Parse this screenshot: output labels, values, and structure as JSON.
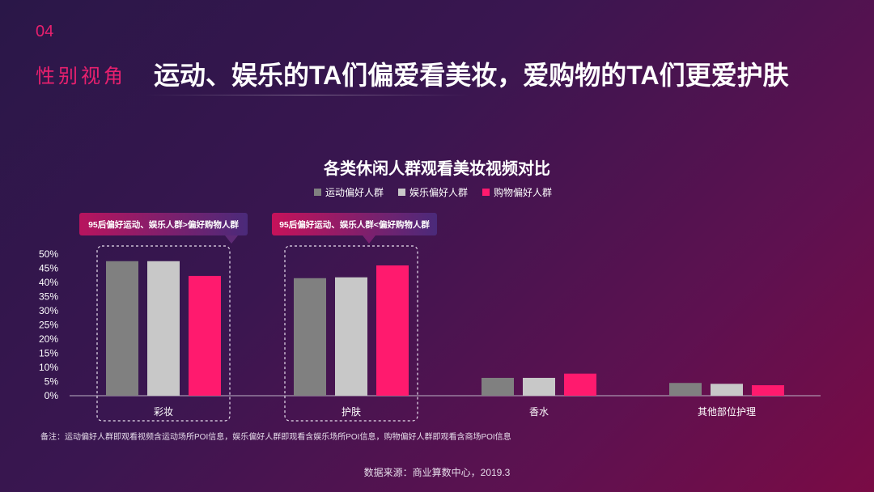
{
  "slide": {
    "number": "04",
    "section": "性别视角",
    "headline": "运动、娱乐的TA们偏爱看美妆，爱购物的TA们更爱护肤"
  },
  "callouts": [
    "95后偏好运动、娱乐人群>偏好购物人群",
    "95后偏好运动、娱乐人群<偏好购物人群"
  ],
  "note": "备注：运动偏好人群即观看视频含运动场所POI信息，娱乐偏好人群即观看含娱乐场所POI信息，购物偏好人群即观看含商场POI信息",
  "source": "数据来源：商业算数中心，2019.3",
  "chart_data": {
    "type": "bar",
    "title": "各类休闲人群观看美妆视频对比",
    "categories": [
      "彩妆",
      "护肤",
      "香水",
      "其他部位护理"
    ],
    "series": [
      {
        "name": "运动偏好人群",
        "color": "#808080",
        "values": [
          47.5,
          41.5,
          6.3,
          4.5
        ]
      },
      {
        "name": "娱乐偏好人群",
        "color": "#c8c8c8",
        "values": [
          47.5,
          41.8,
          6.3,
          4.2
        ]
      },
      {
        "name": "购物偏好人群",
        "color": "#ff1a6e",
        "values": [
          42.3,
          46.0,
          7.8,
          3.7
        ]
      }
    ],
    "ylim": [
      0,
      50
    ],
    "yticks": [
      "0%",
      "5%",
      "10%",
      "15%",
      "20%",
      "25%",
      "30%",
      "35%",
      "40%",
      "45%",
      "50%"
    ],
    "grid": false,
    "legend_position": "top"
  }
}
